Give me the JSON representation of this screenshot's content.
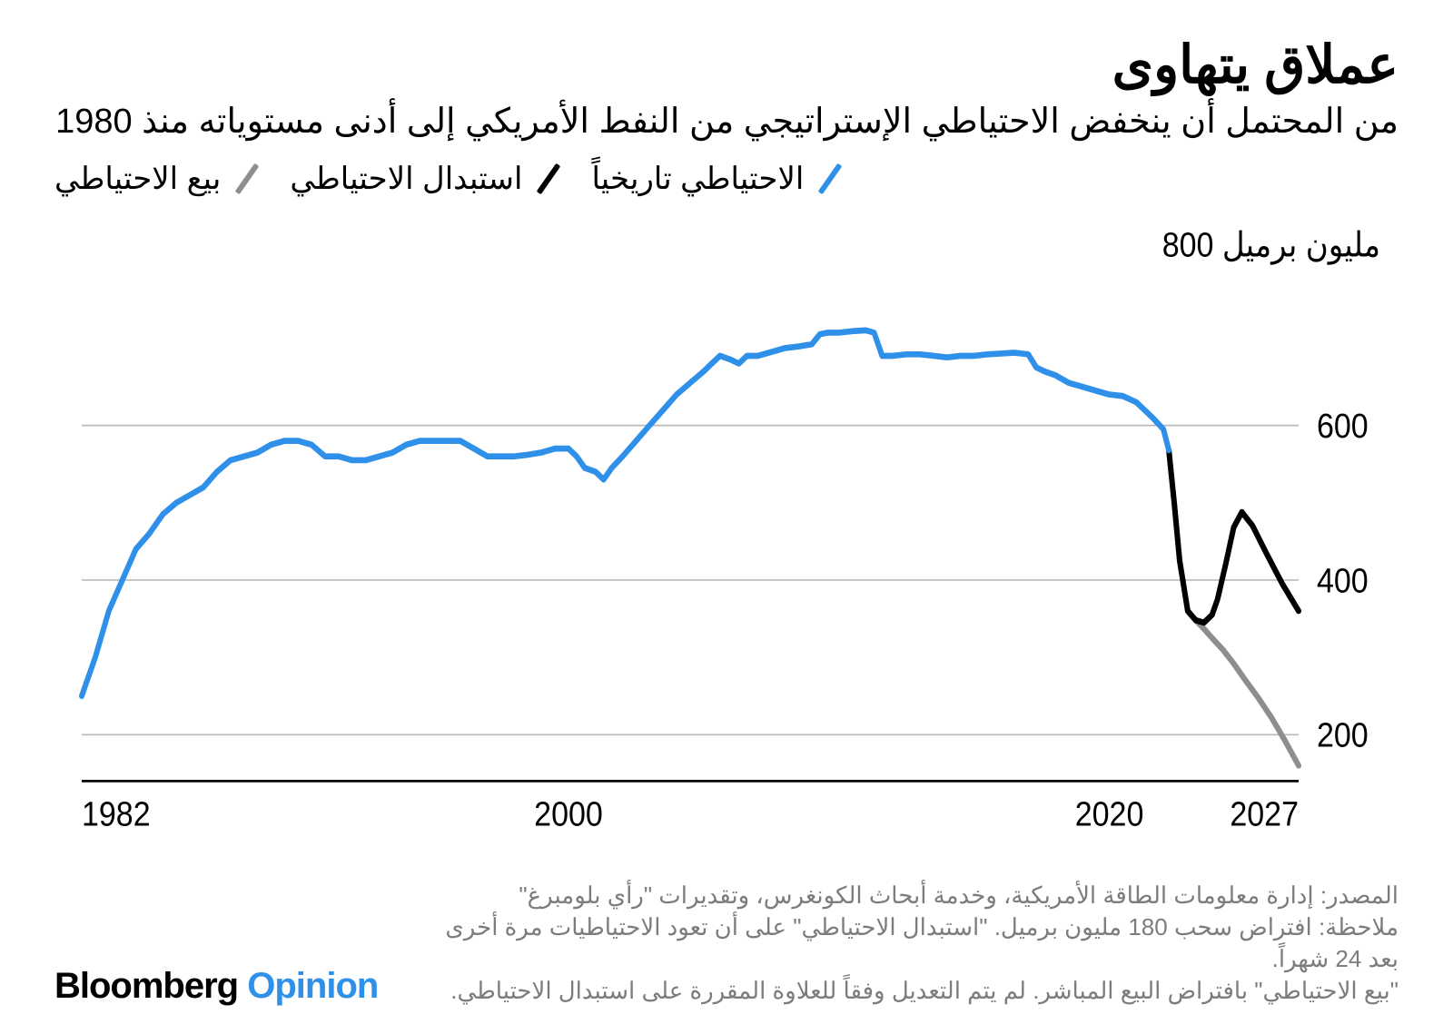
{
  "title": "عملاق يتهاوى",
  "subtitle": "من المحتمل أن ينخفض الاحتياطي الإستراتيجي من النفط الأمريكي إلى أدنى مستوياته منذ 1980",
  "legend": {
    "items": [
      {
        "label": "الاحتياطي تاريخياً",
        "color": "#2f90ea"
      },
      {
        "label": "استبدال الاحتياطي",
        "color": "#000000"
      },
      {
        "label": "بيع الاحتياطي",
        "color": "#8e8e8e"
      }
    ]
  },
  "chart": {
    "type": "line",
    "unit_label": "800 مليون برميل",
    "background_color": "#ffffff",
    "grid_color": "#b9b9b9",
    "baseline_color": "#000000",
    "xlim": [
      1982,
      2027
    ],
    "ylim": [
      140,
      800
    ],
    "yticks": [
      200,
      400,
      600
    ],
    "xticks": [
      1982,
      2000,
      2020,
      2027
    ],
    "line_width": 6,
    "series": [
      {
        "name": "historical",
        "color": "#2f90ea",
        "points": [
          [
            1982,
            250
          ],
          [
            1982.5,
            300
          ],
          [
            1983,
            360
          ],
          [
            1983.5,
            400
          ],
          [
            1984,
            440
          ],
          [
            1984.5,
            460
          ],
          [
            1985,
            485
          ],
          [
            1985.5,
            500
          ],
          [
            1986,
            510
          ],
          [
            1986.5,
            520
          ],
          [
            1987,
            540
          ],
          [
            1987.5,
            555
          ],
          [
            1988,
            560
          ],
          [
            1988.5,
            565
          ],
          [
            1989,
            575
          ],
          [
            1989.5,
            580
          ],
          [
            1990,
            580
          ],
          [
            1990.5,
            575
          ],
          [
            1991,
            560
          ],
          [
            1991.5,
            560
          ],
          [
            1992,
            555
          ],
          [
            1992.5,
            555
          ],
          [
            1993,
            560
          ],
          [
            1993.5,
            565
          ],
          [
            1994,
            575
          ],
          [
            1994.5,
            580
          ],
          [
            1995,
            580
          ],
          [
            1995.5,
            580
          ],
          [
            1996,
            580
          ],
          [
            1996.5,
            570
          ],
          [
            1997,
            560
          ],
          [
            1997.5,
            560
          ],
          [
            1998,
            560
          ],
          [
            1998.5,
            562
          ],
          [
            1999,
            565
          ],
          [
            1999.5,
            570
          ],
          [
            2000,
            570
          ],
          [
            2000.3,
            560
          ],
          [
            2000.6,
            545
          ],
          [
            2001,
            540
          ],
          [
            2001.3,
            530
          ],
          [
            2001.6,
            545
          ],
          [
            2002,
            560
          ],
          [
            2002.5,
            580
          ],
          [
            2003,
            600
          ],
          [
            2003.5,
            620
          ],
          [
            2004,
            640
          ],
          [
            2004.5,
            655
          ],
          [
            2005,
            670
          ],
          [
            2005.3,
            680
          ],
          [
            2005.6,
            690
          ],
          [
            2006,
            685
          ],
          [
            2006.3,
            680
          ],
          [
            2006.6,
            690
          ],
          [
            2007,
            690
          ],
          [
            2007.5,
            695
          ],
          [
            2008,
            700
          ],
          [
            2008.5,
            702
          ],
          [
            2009,
            705
          ],
          [
            2009.3,
            718
          ],
          [
            2009.6,
            720
          ],
          [
            2010,
            720
          ],
          [
            2010.5,
            722
          ],
          [
            2011,
            723
          ],
          [
            2011.3,
            720
          ],
          [
            2011.6,
            690
          ],
          [
            2012,
            690
          ],
          [
            2012.5,
            692
          ],
          [
            2013,
            692
          ],
          [
            2013.5,
            690
          ],
          [
            2014,
            688
          ],
          [
            2014.5,
            690
          ],
          [
            2015,
            690
          ],
          [
            2015.5,
            692
          ],
          [
            2016,
            693
          ],
          [
            2016.5,
            694
          ],
          [
            2017,
            692
          ],
          [
            2017.3,
            675
          ],
          [
            2017.6,
            670
          ],
          [
            2018,
            665
          ],
          [
            2018.5,
            655
          ],
          [
            2019,
            650
          ],
          [
            2019.5,
            645
          ],
          [
            2020,
            640
          ],
          [
            2020.5,
            638
          ],
          [
            2021,
            630
          ],
          [
            2021.3,
            620
          ],
          [
            2021.6,
            610
          ],
          [
            2022,
            595
          ],
          [
            2022.2,
            568
          ]
        ]
      },
      {
        "name": "replace",
        "color": "#000000",
        "points": [
          [
            2022.2,
            568
          ],
          [
            2022.4,
            500
          ],
          [
            2022.6,
            425
          ],
          [
            2022.9,
            360
          ],
          [
            2023.2,
            348
          ],
          [
            2023.5,
            345
          ],
          [
            2023.8,
            355
          ],
          [
            2024.0,
            375
          ],
          [
            2024.3,
            420
          ],
          [
            2024.6,
            468
          ],
          [
            2024.9,
            488
          ],
          [
            2025.3,
            470
          ],
          [
            2025.8,
            435
          ],
          [
            2026.4,
            395
          ],
          [
            2027,
            360
          ]
        ]
      },
      {
        "name": "sell",
        "color": "#8e8e8e",
        "points": [
          [
            2022.2,
            568
          ],
          [
            2022.4,
            500
          ],
          [
            2022.6,
            425
          ],
          [
            2022.9,
            360
          ],
          [
            2023.2,
            348
          ],
          [
            2023.5,
            337
          ],
          [
            2023.8,
            325
          ],
          [
            2024.2,
            310
          ],
          [
            2024.6,
            292
          ],
          [
            2025.0,
            272
          ],
          [
            2025.5,
            248
          ],
          [
            2026.0,
            222
          ],
          [
            2026.5,
            192
          ],
          [
            2027,
            160
          ]
        ]
      }
    ]
  },
  "notes": {
    "source": "المصدر: إدارة معلومات الطاقة الأمريكية، وخدمة أبحاث الكونغرس، وتقديرات \"رأي بلومبرغ\"",
    "note1": "ملاحظة: افتراض سحب 180 مليون برميل. \"استبدال الاحتياطي\" على أن تعود الاحتياطيات مرة أخرى بعد 24 شهراً.",
    "note2": "\"بيع الاحتياطي\" بافتراض البيع المباشر. لم يتم التعديل وفقاً للعلاوة المقررة على استبدال الاحتياطي."
  },
  "brand": {
    "part1": "Bloomberg",
    "part2": "Opinion",
    "color2": "#2f90ea"
  }
}
